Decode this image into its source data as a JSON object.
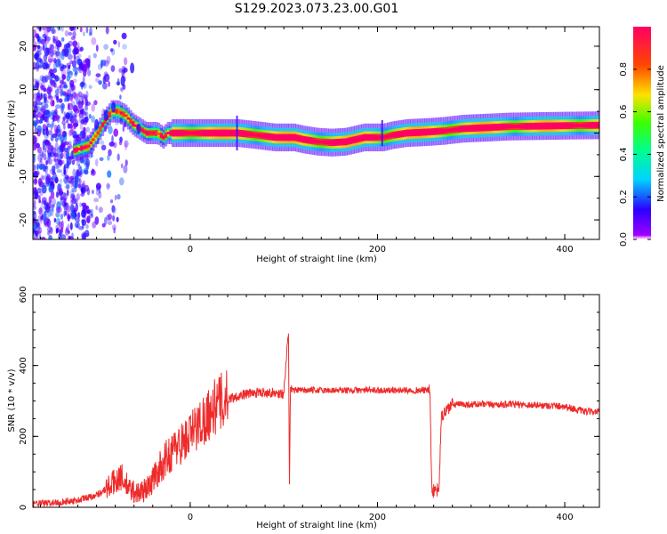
{
  "title": "S129.2023.073.23.00.G01",
  "chart_data": [
    {
      "type": "heatmap",
      "xlabel": "Height of straight line (km)",
      "ylabel": "Frequency (Hz)",
      "xlim": [
        -168,
        437
      ],
      "ylim": [
        -24.5,
        24.5
      ],
      "xticks": [
        0,
        200,
        400
      ],
      "xtick_labels": [
        "0",
        "200",
        "400"
      ],
      "yticks": [
        -20,
        -10,
        0,
        10,
        20
      ],
      "ytick_labels": [
        "-20",
        "-10",
        "0",
        "10",
        "20"
      ],
      "colorbar": {
        "label": "Normalized spectral amplitude",
        "range": [
          0,
          1
        ],
        "ticks": [
          0,
          0.2,
          0.4,
          0.6,
          0.8
        ],
        "tick_labels": [
          "0.0",
          "0.2",
          "0.4",
          "0.6",
          "0.8"
        ]
      },
      "ridge": {
        "x": [
          -125,
          -110,
          -100,
          -92,
          -85,
          -78,
          -70,
          -62,
          -55,
          -48,
          -42,
          -36,
          -30,
          -25,
          -10,
          20,
          50,
          70,
          90,
          100,
          110,
          120,
          135,
          150,
          165,
          175,
          185,
          195,
          205,
          215,
          230,
          250,
          270,
          290,
          310,
          340,
          370,
          400,
          437
        ],
        "y": [
          -4,
          -3,
          0,
          3,
          5,
          5,
          4,
          2,
          1,
          0,
          0,
          0,
          -1,
          0,
          0,
          0,
          0,
          -0.5,
          -1,
          -1,
          -1,
          -1.5,
          -2,
          -2.2,
          -2,
          -1.5,
          -1,
          -1,
          -1,
          -0.5,
          0,
          0.2,
          0.5,
          1,
          1.2,
          1.5,
          1.6,
          1.7,
          1.8
        ]
      },
      "colormap": "gist_rainbow_r",
      "grid": false
    },
    {
      "type": "line",
      "xlabel": "Height of straight line (km)",
      "ylabel": "SNR (10 * v/v)",
      "xlim": [
        -168,
        437
      ],
      "ylim": [
        0,
        600
      ],
      "xticks": [
        0,
        200,
        400
      ],
      "xtick_labels": [
        "0",
        "200",
        "400"
      ],
      "yticks": [
        0,
        200,
        400,
        600
      ],
      "ytick_labels": [
        "0",
        "200",
        "400",
        "600"
      ],
      "series_color": "#ee2a2a",
      "series": {
        "x": [
          -168,
          -150,
          -120,
          -100,
          -85,
          -75,
          -65,
          -55,
          -45,
          -35,
          -25,
          -15,
          -5,
          5,
          15,
          25,
          35,
          45,
          60,
          80,
          100,
          105,
          106,
          107,
          110,
          130,
          160,
          190,
          220,
          250,
          256,
          258,
          262,
          266,
          268,
          272,
          276,
          280,
          300,
          350,
          400,
          420,
          437
        ],
        "y": [
          10,
          12,
          20,
          35,
          60,
          90,
          50,
          40,
          55,
          100,
          140,
          170,
          190,
          220,
          250,
          280,
          300,
          310,
          320,
          325,
          320,
          500,
          40,
          330,
          330,
          330,
          330,
          330,
          330,
          330,
          330,
          50,
          40,
          60,
          250,
          270,
          280,
          290,
          290,
          290,
          285,
          270,
          270
        ]
      },
      "grid": false
    }
  ]
}
